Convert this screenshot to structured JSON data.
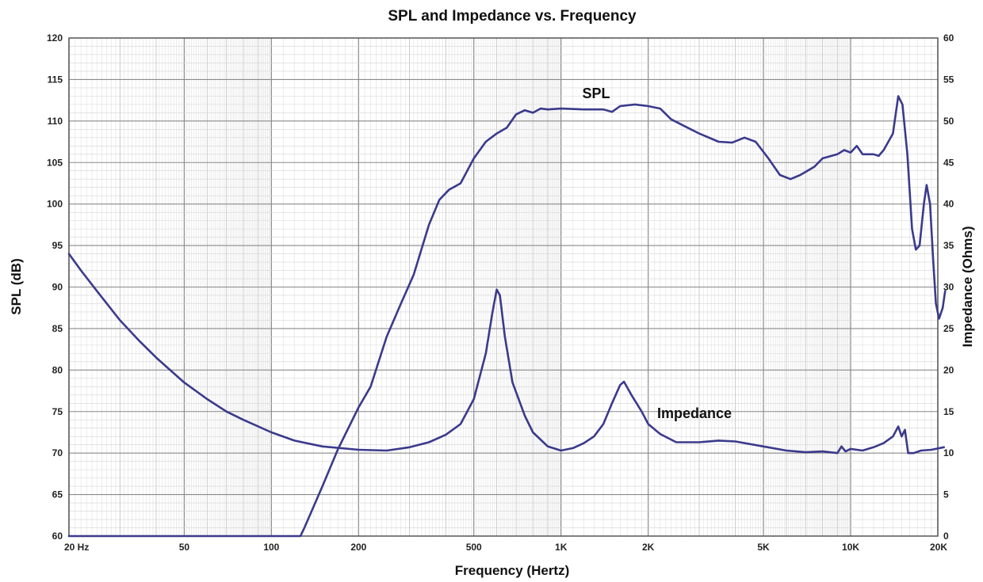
{
  "chart_data": {
    "type": "line",
    "title": "SPL and Impedance vs. Frequency",
    "xlabel": "Frequency (Hertz)",
    "ylabel": "SPL (dB)",
    "y2label": "Impedance (Ohms)",
    "x_scale": "log",
    "xlim": [
      20,
      20000
    ],
    "ylim": [
      60,
      120
    ],
    "y2lim": [
      0,
      60
    ],
    "grid": true,
    "x_tick_labels": [
      {
        "value": 20,
        "label": "20  Hz"
      },
      {
        "value": 50,
        "label": "50"
      },
      {
        "value": 100,
        "label": "100"
      },
      {
        "value": 200,
        "label": "200"
      },
      {
        "value": 500,
        "label": "500"
      },
      {
        "value": 1000,
        "label": "1K"
      },
      {
        "value": 2000,
        "label": "2K"
      },
      {
        "value": 5000,
        "label": "5K"
      },
      {
        "value": 10000,
        "label": "10K"
      },
      {
        "value": 20000,
        "label": "20K"
      }
    ],
    "y_ticks": [
      60,
      65,
      70,
      75,
      80,
      85,
      90,
      95,
      100,
      105,
      110,
      115,
      120
    ],
    "y2_ticks": [
      0,
      5,
      10,
      15,
      20,
      25,
      30,
      35,
      40,
      45,
      50,
      55,
      60
    ],
    "series": [
      {
        "name": "SPL",
        "axis": "left",
        "color": "#3a3a8c",
        "points": [
          [
            20,
            60
          ],
          [
            126,
            60
          ],
          [
            130,
            61
          ],
          [
            150,
            66
          ],
          [
            170,
            70.5
          ],
          [
            200,
            75.5
          ],
          [
            220,
            78
          ],
          [
            250,
            84
          ],
          [
            280,
            88
          ],
          [
            310,
            91.5
          ],
          [
            350,
            97.5
          ],
          [
            380,
            100.5
          ],
          [
            410,
            101.7
          ],
          [
            450,
            102.5
          ],
          [
            500,
            105.5
          ],
          [
            550,
            107.5
          ],
          [
            600,
            108.5
          ],
          [
            650,
            109.2
          ],
          [
            700,
            110.8
          ],
          [
            750,
            111.3
          ],
          [
            800,
            111
          ],
          [
            850,
            111.5
          ],
          [
            900,
            111.4
          ],
          [
            1000,
            111.5
          ],
          [
            1200,
            111.4
          ],
          [
            1400,
            111.4
          ],
          [
            1500,
            111.1
          ],
          [
            1600,
            111.8
          ],
          [
            1800,
            112
          ],
          [
            2000,
            111.8
          ],
          [
            2200,
            111.5
          ],
          [
            2400,
            110.2
          ],
          [
            2700,
            109.3
          ],
          [
            3000,
            108.5
          ],
          [
            3500,
            107.5
          ],
          [
            3900,
            107.4
          ],
          [
            4300,
            108
          ],
          [
            4700,
            107.5
          ],
          [
            5200,
            105.5
          ],
          [
            5700,
            103.5
          ],
          [
            6200,
            103
          ],
          [
            6700,
            103.5
          ],
          [
            7500,
            104.5
          ],
          [
            8000,
            105.5
          ],
          [
            9000,
            106
          ],
          [
            9500,
            106.5
          ],
          [
            10000,
            106.2
          ],
          [
            10500,
            107
          ],
          [
            11000,
            106
          ],
          [
            12000,
            106
          ],
          [
            12500,
            105.8
          ],
          [
            13000,
            106.5
          ],
          [
            13500,
            107.5
          ],
          [
            14000,
            108.5
          ],
          [
            14600,
            113
          ],
          [
            15100,
            112
          ],
          [
            15700,
            106
          ],
          [
            16300,
            97
          ],
          [
            16800,
            94.5
          ],
          [
            17300,
            95
          ],
          [
            17900,
            100
          ],
          [
            18300,
            102.3
          ],
          [
            18800,
            100
          ],
          [
            19300,
            93
          ],
          [
            19700,
            88
          ],
          [
            20200,
            86.2
          ],
          [
            20800,
            87.5
          ],
          [
            21200,
            89.5
          ]
        ]
      },
      {
        "name": "Impedance",
        "axis": "right",
        "color": "#3a3a8c",
        "points": [
          [
            20,
            34
          ],
          [
            22,
            32
          ],
          [
            25,
            29.5
          ],
          [
            30,
            26
          ],
          [
            35,
            23.5
          ],
          [
            40,
            21.5
          ],
          [
            50,
            18.5
          ],
          [
            60,
            16.5
          ],
          [
            70,
            15
          ],
          [
            80,
            14
          ],
          [
            100,
            12.5
          ],
          [
            120,
            11.5
          ],
          [
            150,
            10.8
          ],
          [
            200,
            10.4
          ],
          [
            250,
            10.3
          ],
          [
            300,
            10.7
          ],
          [
            350,
            11.3
          ],
          [
            400,
            12.2
          ],
          [
            450,
            13.5
          ],
          [
            500,
            16.5
          ],
          [
            550,
            22
          ],
          [
            580,
            27
          ],
          [
            600,
            29.7
          ],
          [
            615,
            29
          ],
          [
            640,
            24
          ],
          [
            680,
            18.5
          ],
          [
            750,
            14.5
          ],
          [
            800,
            12.5
          ],
          [
            900,
            10.8
          ],
          [
            1000,
            10.3
          ],
          [
            1100,
            10.6
          ],
          [
            1200,
            11.2
          ],
          [
            1300,
            12
          ],
          [
            1400,
            13.5
          ],
          [
            1500,
            16
          ],
          [
            1600,
            18.2
          ],
          [
            1650,
            18.6
          ],
          [
            1750,
            17
          ],
          [
            1900,
            15
          ],
          [
            2000,
            13.5
          ],
          [
            2200,
            12.3
          ],
          [
            2500,
            11.3
          ],
          [
            3000,
            11.3
          ],
          [
            3500,
            11.5
          ],
          [
            4000,
            11.4
          ],
          [
            5000,
            10.8
          ],
          [
            6000,
            10.3
          ],
          [
            7000,
            10.1
          ],
          [
            8000,
            10.2
          ],
          [
            9000,
            10
          ],
          [
            9300,
            10.8
          ],
          [
            9600,
            10.2
          ],
          [
            10000,
            10.5
          ],
          [
            11000,
            10.3
          ],
          [
            12000,
            10.7
          ],
          [
            13000,
            11.2
          ],
          [
            14000,
            12
          ],
          [
            14600,
            13.2
          ],
          [
            15000,
            12
          ],
          [
            15400,
            12.8
          ],
          [
            15800,
            10
          ],
          [
            16500,
            10
          ],
          [
            17500,
            10.3
          ],
          [
            19000,
            10.4
          ],
          [
            21000,
            10.7
          ]
        ]
      }
    ]
  }
}
